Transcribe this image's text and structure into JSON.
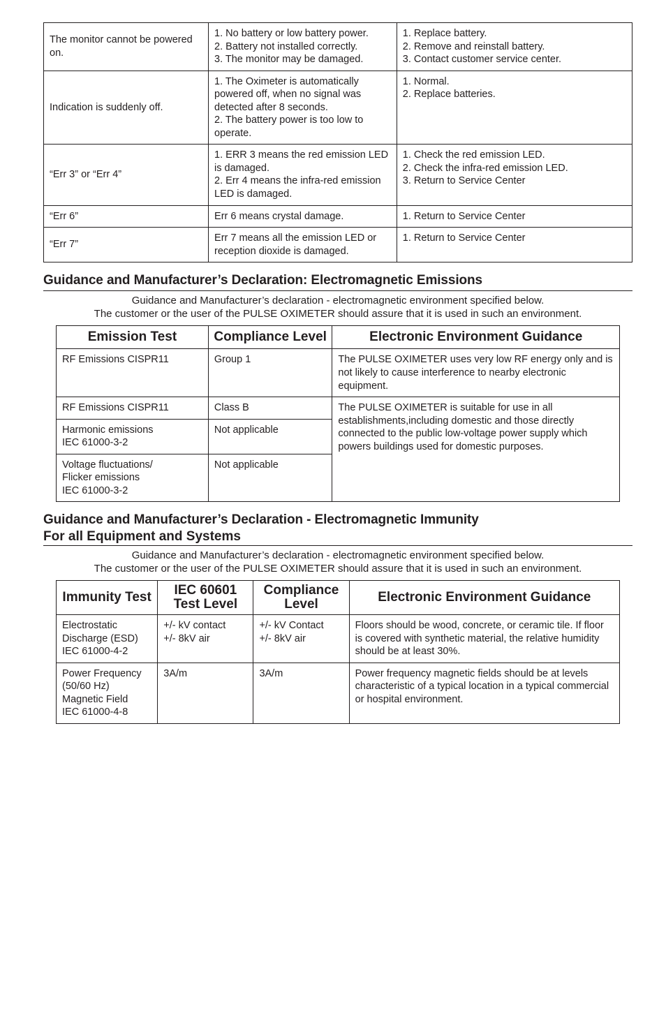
{
  "troubleshoot": {
    "col_widths": [
      "28%",
      "32%",
      "40%"
    ],
    "rows": [
      {
        "c1": "The monitor cannot be powered on.",
        "c2": "1.  No battery or low battery power.\n2.  Battery not installed correctly.\n3.  The monitor may be damaged.",
        "c3": "1.  Replace battery.\n2.  Remove and reinstall battery.\n3.  Contact customer service center."
      },
      {
        "c1": "Indication is suddenly off.",
        "c2": "1.  The Oximeter is automatically powered off, when no signal was detected after 8 seconds.\n2.  The battery power is too low to operate.",
        "c3": "1.  Normal.\n2.  Replace batteries."
      },
      {
        "c1": "“Err 3” or “Err 4”",
        "c2": "1.  ERR 3 means the red emission LED is damaged.\n2.  Err 4 means the infra-red emission LED is damaged.",
        "c3": "1.  Check the red emission LED.\n2.  Check the infra-red emission LED.\n3. Return to Service Center"
      },
      {
        "c1": "“Err 6”",
        "c2": "Err 6 means crystal damage.",
        "c3": "1. Return to Service Center"
      },
      {
        "c1": "“Err 7”",
        "c2": "Err 7 means all the emission LED or reception dioxide is damaged.",
        "c3": "1. Return to Service Center"
      }
    ]
  },
  "section1_title": "Guidance and Manufacturer’s Declaration: Electromagnetic Emissions",
  "section1_intro": "Guidance and Manufacturer’s declaration - electromagnetic environment specified below.\nThe customer or the user of the PULSE OXIMETER should assure that it is used in such an environment.",
  "emissions": {
    "headers": [
      "Emission Test",
      "Compliance Level",
      "Electronic Environment Guidance"
    ],
    "col_widths": [
      "27%",
      "22%",
      "51%"
    ],
    "row1": {
      "c1": "RF Emissions CISPR11",
      "c2": "Group 1",
      "c3": "The PULSE OXIMETER uses very low RF energy only and is not likely to cause interference to nearby electronic equipment."
    },
    "row2": {
      "c1": "RF Emissions CISPR11",
      "c2": "Class B"
    },
    "row3": {
      "c1": "Harmonic emissions\nIEC 61000-3-2",
      "c2": "Not applicable"
    },
    "row4": {
      "c1": "Voltage fluctuations/\nFlicker emissions\nIEC 61000-3-2",
      "c2": "Not applicable"
    },
    "shared_c3": "The PULSE OXIMETER is suitable for use in all establishments,including domestic and those directly connected to the public low-voltage power supply which powers buildings used for domestic purposes."
  },
  "section2_title": "Guidance and Manufacturer’s Declaration - Electromagnetic Immunity",
  "section2_sub": "For all Equipment and Systems",
  "section2_intro": "Guidance and Manufacturer’s declaration - electromagnetic environment specified below.\nThe customer or the user of the PULSE OXIMETER should assure that it is used in such an environment.",
  "immunity": {
    "headers": [
      "Immunity Test",
      "IEC 60601 Test Level",
      "Compliance Level",
      "Electronic Environment Guidance"
    ],
    "col_widths": [
      "18%",
      "17%",
      "17%",
      "48%"
    ],
    "rows": [
      {
        "c1": "Electrostatic Discharge (ESD)\nIEC 61000-4-2",
        "c2": "+/- kV contact\n+/- 8kV air",
        "c3": "+/- kV Contact\n+/- 8kV air",
        "c4": "Floors should be wood, concrete, or ceramic tile. If floor is covered with synthetic material, the relative humidity should be at least 30%."
      },
      {
        "c1": "Power Frequency (50/60 Hz) Magnetic Field\nIEC 61000-4-8",
        "c2": "3A/m",
        "c3": "3A/m",
        "c4": "Power frequency magnetic fields should be at levels characteristic of a typical location in a typical commercial or hospital environment."
      }
    ]
  }
}
